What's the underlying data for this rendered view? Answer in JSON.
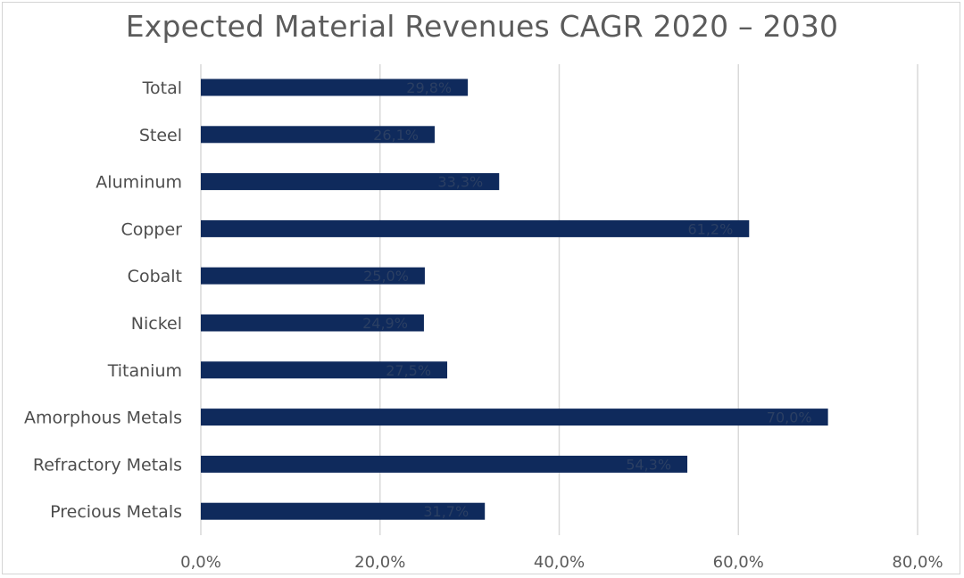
{
  "chart_data": {
    "type": "bar",
    "orientation": "horizontal",
    "title": "Expected Material Revenues CAGR 2020 – 2030",
    "xlabel": "",
    "ylabel": "",
    "categories": [
      "Total",
      "Steel",
      "Aluminum",
      "Copper",
      "Cobalt",
      "Nickel",
      "Titanium",
      "Amorphous Metals",
      "Refractory Metals",
      "Precious Metals"
    ],
    "values": [
      29.8,
      26.1,
      33.3,
      61.2,
      25.0,
      24.9,
      27.5,
      70.0,
      54.3,
      31.7
    ],
    "data_labels": [
      "29,8%",
      "26,1%",
      "33,3%",
      "61,2%",
      "25,0%",
      "24,9%",
      "27,5%",
      "70,0%",
      "54,3%",
      "31,7%"
    ],
    "xlim": [
      0,
      80
    ],
    "xticks": [
      0,
      20,
      40,
      60,
      80
    ],
    "xtick_labels": [
      "0,0%",
      "20,0%",
      "40,0%",
      "60,0%",
      "80,0%"
    ],
    "grid": true,
    "legend": "none",
    "bar_color": "#0f2a5c"
  }
}
